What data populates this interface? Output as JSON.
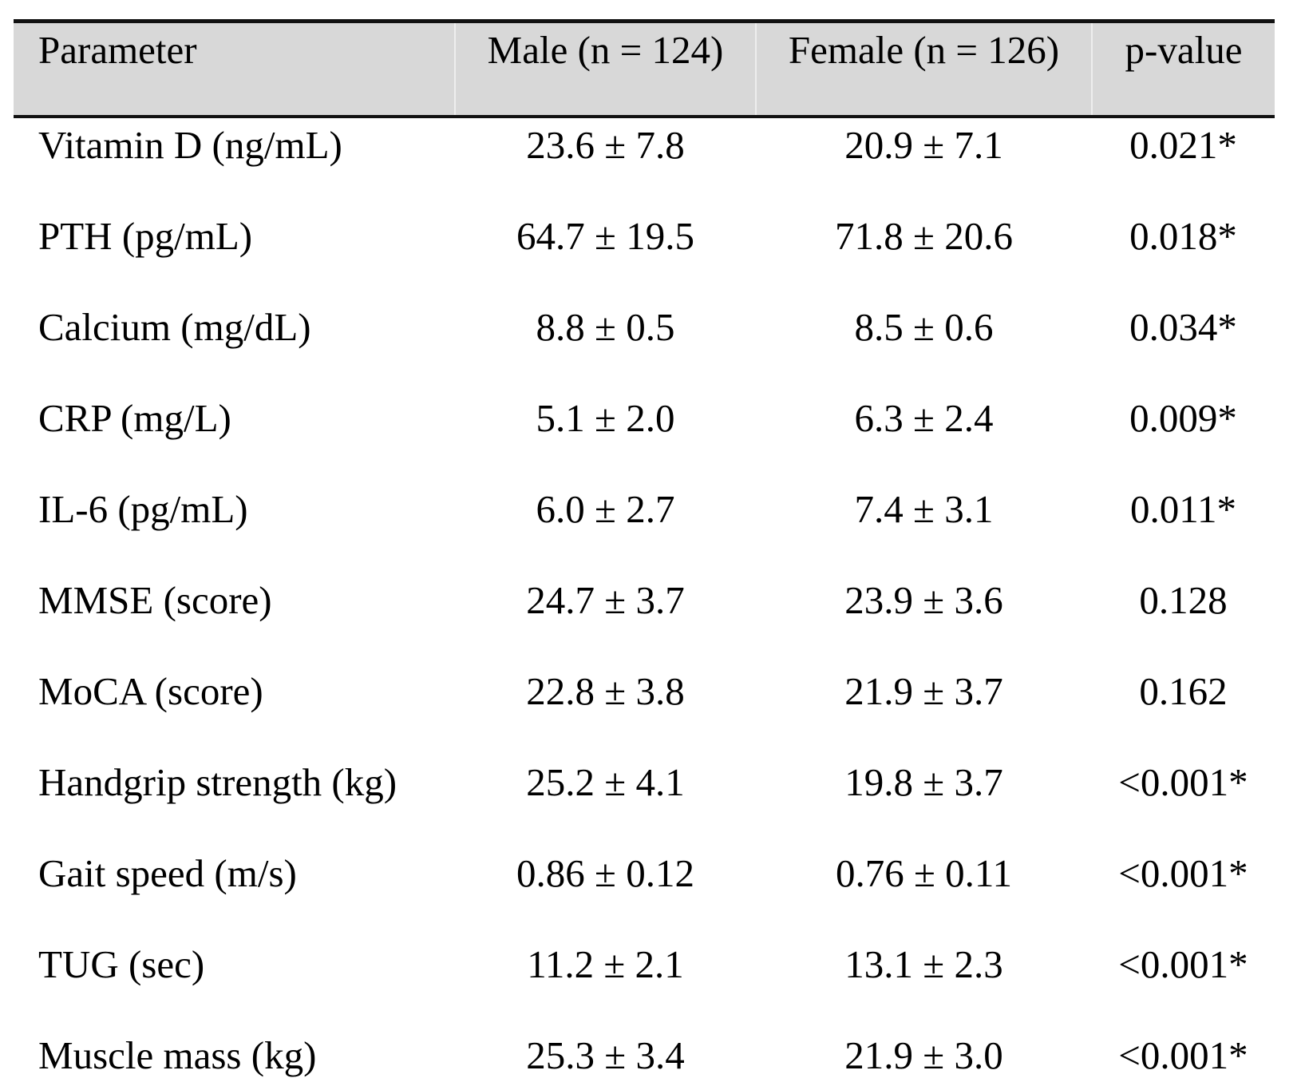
{
  "table": {
    "columns": [
      "Parameter",
      "Male (n = 124)",
      "Female (n = 126)",
      "p-value"
    ],
    "rows": [
      {
        "parameter": "Vitamin D (ng/mL)",
        "male": "23.6 ± 7.8",
        "female": "20.9 ± 7.1",
        "p": "0.021*"
      },
      {
        "parameter": "PTH (pg/mL)",
        "male": "64.7 ± 19.5",
        "female": "71.8 ± 20.6",
        "p": "0.018*"
      },
      {
        "parameter": "Calcium (mg/dL)",
        "male": "8.8 ± 0.5",
        "female": "8.5 ± 0.6",
        "p": "0.034*"
      },
      {
        "parameter": "CRP (mg/L)",
        "male": "5.1 ± 2.0",
        "female": "6.3 ± 2.4",
        "p": "0.009*"
      },
      {
        "parameter": "IL-6 (pg/mL)",
        "male": "6.0 ± 2.7",
        "female": "7.4 ± 3.1",
        "p": "0.011*"
      },
      {
        "parameter": "MMSE (score)",
        "male": "24.7 ± 3.7",
        "female": "23.9 ± 3.6",
        "p": "0.128"
      },
      {
        "parameter": "MoCA (score)",
        "male": "22.8 ± 3.8",
        "female": "21.9 ± 3.7",
        "p": "0.162"
      },
      {
        "parameter": "Handgrip strength (kg)",
        "male": "25.2 ± 4.1",
        "female": "19.8 ± 3.7",
        "p": "<0.001*"
      },
      {
        "parameter": "Gait speed (m/s)",
        "male": "0.86 ± 0.12",
        "female": "0.76 ± 0.11",
        "p": "<0.001*"
      },
      {
        "parameter": "TUG (sec)",
        "male": "11.2 ± 2.1",
        "female": "13.1 ± 2.3",
        "p": "<0.001*"
      },
      {
        "parameter": "Muscle mass (kg)",
        "male": "25.3 ± 3.4",
        "female": "21.9 ± 3.0",
        "p": "<0.001*"
      }
    ]
  },
  "colors": {
    "header_background": "#d8d8d8",
    "border": "#111111",
    "text": "#000000",
    "page_background": "#ffffff"
  },
  "chart_data": {
    "type": "table",
    "title": "",
    "columns": [
      "Parameter",
      "Male (n = 124)",
      "Female (n = 126)",
      "p-value"
    ],
    "rows": [
      [
        "Vitamin D (ng/mL)",
        "23.6 ± 7.8",
        "20.9 ± 7.1",
        "0.021*"
      ],
      [
        "PTH (pg/mL)",
        "64.7 ± 19.5",
        "71.8 ± 20.6",
        "0.018*"
      ],
      [
        "Calcium (mg/dL)",
        "8.8 ± 0.5",
        "8.5 ± 0.6",
        "0.034*"
      ],
      [
        "CRP (mg/L)",
        "5.1 ± 2.0",
        "6.3 ± 2.4",
        "0.009*"
      ],
      [
        "IL-6 (pg/mL)",
        "6.0 ± 2.7",
        "7.4 ± 3.1",
        "0.011*"
      ],
      [
        "MMSE (score)",
        "24.7 ± 3.7",
        "23.9 ± 3.6",
        "0.128"
      ],
      [
        "MoCA (score)",
        "22.8 ± 3.8",
        "21.9 ± 3.7",
        "0.162"
      ],
      [
        "Handgrip strength (kg)",
        "25.2 ± 4.1",
        "19.8 ± 3.7",
        "<0.001*"
      ],
      [
        "Gait speed (m/s)",
        "0.86 ± 0.12",
        "0.76 ± 0.11",
        "<0.001*"
      ],
      [
        "TUG (sec)",
        "11.2 ± 2.1",
        "13.1 ± 2.3",
        "<0.001*"
      ],
      [
        "Muscle mass (kg)",
        "25.3 ± 3.4",
        "21.9 ± 3.0",
        "<0.001*"
      ]
    ]
  }
}
